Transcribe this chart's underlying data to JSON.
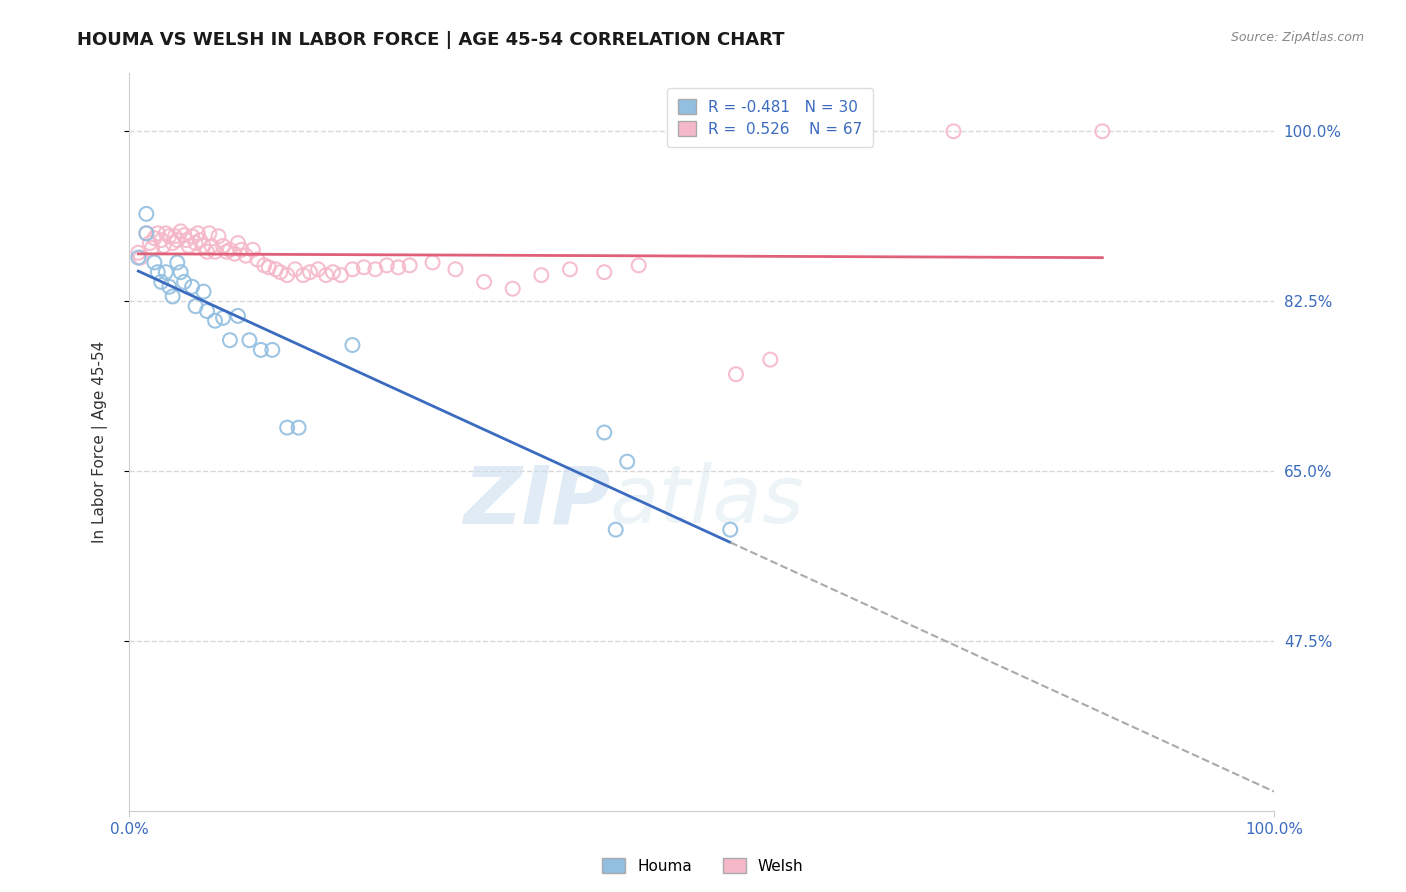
{
  "title": "HOUMA VS WELSH IN LABOR FORCE | AGE 45-54 CORRELATION CHART",
  "source": "Source: ZipAtlas.com",
  "ylabel": "In Labor Force | Age 45-54",
  "watermark_zip": "ZIP",
  "watermark_atlas": "atlas",
  "xlim": [
    0.0,
    1.0
  ],
  "ylim": [
    0.3,
    1.06
  ],
  "yticks": [
    0.475,
    0.65,
    0.825,
    1.0
  ],
  "ytick_labels": [
    "47.5%",
    "65.0%",
    "82.5%",
    "100.0%"
  ],
  "xticks": [
    0.0,
    1.0
  ],
  "xtick_labels": [
    "0.0%",
    "100.0%"
  ],
  "houma_color": "#92bfe0",
  "welsh_color": "#f5b8c8",
  "houma_line_color": "#3a6bbf",
  "welsh_line_color": "#e0607a",
  "R_houma": -0.481,
  "N_houma": 30,
  "R_welsh": 0.526,
  "N_welsh": 67,
  "houma_x": [
    0.008,
    0.015,
    0.015,
    0.022,
    0.025,
    0.028,
    0.032,
    0.035,
    0.038,
    0.042,
    0.045,
    0.048,
    0.055,
    0.058,
    0.065,
    0.068,
    0.075,
    0.082,
    0.088,
    0.095,
    0.105,
    0.115,
    0.125,
    0.138,
    0.148,
    0.195,
    0.415,
    0.425,
    0.435,
    0.525
  ],
  "houma_y": [
    0.87,
    0.915,
    0.895,
    0.865,
    0.855,
    0.845,
    0.855,
    0.84,
    0.83,
    0.865,
    0.855,
    0.845,
    0.84,
    0.82,
    0.835,
    0.815,
    0.805,
    0.808,
    0.785,
    0.81,
    0.785,
    0.775,
    0.775,
    0.695,
    0.695,
    0.78,
    0.69,
    0.59,
    0.66,
    0.59
  ],
  "welsh_x": [
    0.008,
    0.01,
    0.015,
    0.018,
    0.02,
    0.022,
    0.025,
    0.028,
    0.03,
    0.032,
    0.035,
    0.038,
    0.04,
    0.042,
    0.045,
    0.048,
    0.05,
    0.052,
    0.055,
    0.058,
    0.06,
    0.062,
    0.065,
    0.068,
    0.07,
    0.072,
    0.075,
    0.078,
    0.082,
    0.085,
    0.088,
    0.092,
    0.095,
    0.098,
    0.102,
    0.108,
    0.112,
    0.118,
    0.122,
    0.128,
    0.132,
    0.138,
    0.145,
    0.152,
    0.158,
    0.165,
    0.172,
    0.178,
    0.185,
    0.195,
    0.205,
    0.215,
    0.225,
    0.235,
    0.245,
    0.265,
    0.285,
    0.31,
    0.335,
    0.36,
    0.385,
    0.415,
    0.445,
    0.53,
    0.56,
    0.72,
    0.85
  ],
  "welsh_y": [
    0.875,
    0.87,
    0.895,
    0.885,
    0.88,
    0.89,
    0.895,
    0.888,
    0.882,
    0.895,
    0.892,
    0.885,
    0.892,
    0.888,
    0.897,
    0.893,
    0.888,
    0.882,
    0.892,
    0.885,
    0.895,
    0.888,
    0.882,
    0.876,
    0.895,
    0.882,
    0.876,
    0.892,
    0.882,
    0.876,
    0.878,
    0.874,
    0.885,
    0.878,
    0.872,
    0.878,
    0.868,
    0.862,
    0.86,
    0.858,
    0.855,
    0.852,
    0.858,
    0.852,
    0.855,
    0.858,
    0.852,
    0.855,
    0.852,
    0.858,
    0.86,
    0.858,
    0.862,
    0.86,
    0.862,
    0.865,
    0.858,
    0.845,
    0.838,
    0.852,
    0.858,
    0.855,
    0.862,
    0.75,
    0.765,
    1.0,
    1.0
  ],
  "background_color": "#ffffff",
  "grid_color": "#d8d8d8",
  "axis_color": "#cccccc",
  "tick_color": "#3a6bbf",
  "title_fontsize": 13,
  "label_fontsize": 11,
  "tick_fontsize": 11,
  "marker_size": 100,
  "marker_linewidth": 1.5,
  "legend_fontsize": 11
}
